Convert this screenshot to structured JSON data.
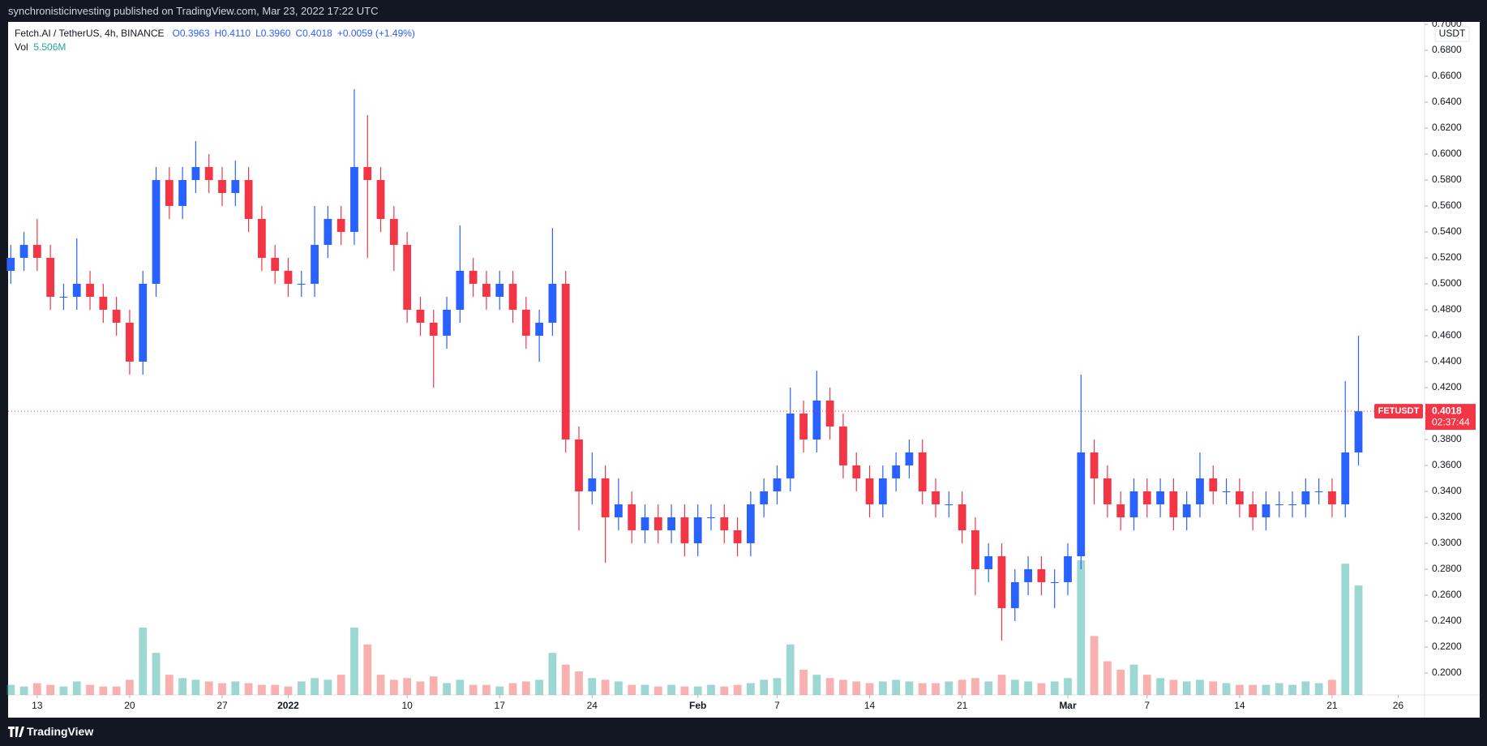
{
  "header": {
    "text": "synchronisticinvesting published on TradingView.com, Mar 23, 2022 17:22 UTC"
  },
  "legend": {
    "symbol": "Fetch.AI / TetherUS, 4h, BINANCE",
    "ohlc": [
      "O0.3963",
      "H0.4110",
      "L0.3960",
      "C0.4018"
    ],
    "change": "+0.0059 (+1.49%)",
    "volume_label": "Vol",
    "volume_value": "5.506M"
  },
  "footer": {
    "brand": "TradingView"
  },
  "chart_data": {
    "type": "candlestick",
    "currency": "USDT",
    "x": [
      -2,
      -1,
      0,
      1,
      2,
      3,
      4,
      5,
      6,
      7,
      8,
      9,
      10,
      11,
      12,
      13,
      14,
      15,
      16,
      17,
      18,
      19,
      20,
      21,
      22,
      23,
      24,
      25,
      26,
      27,
      28,
      29,
      30,
      31,
      32,
      33,
      34,
      35,
      36,
      37,
      38,
      39,
      40,
      41,
      42,
      43,
      44,
      45,
      46,
      47,
      48,
      49,
      50,
      51,
      52,
      53,
      54,
      55,
      56,
      57,
      58,
      59,
      60,
      61,
      62,
      63,
      64,
      65,
      66,
      67,
      68,
      69,
      70,
      71,
      72,
      73,
      74,
      75,
      76,
      77,
      78,
      79,
      80,
      81,
      82,
      83,
      84,
      85,
      86,
      87,
      88,
      89,
      90,
      91,
      92,
      93,
      94,
      95,
      96,
      97,
      98,
      99,
      100
    ],
    "open": [
      0.51,
      0.52,
      0.53,
      0.52,
      0.49,
      0.49,
      0.5,
      0.49,
      0.48,
      0.47,
      0.44,
      0.5,
      0.58,
      0.56,
      0.58,
      0.59,
      0.58,
      0.57,
      0.58,
      0.55,
      0.52,
      0.51,
      0.5,
      0.5,
      0.53,
      0.55,
      0.54,
      0.59,
      0.58,
      0.55,
      0.53,
      0.48,
      0.47,
      0.46,
      0.48,
      0.51,
      0.5,
      0.49,
      0.5,
      0.48,
      0.46,
      0.47,
      0.5,
      0.38,
      0.34,
      0.35,
      0.32,
      0.33,
      0.31,
      0.32,
      0.31,
      0.32,
      0.3,
      0.32,
      0.32,
      0.31,
      0.3,
      0.33,
      0.34,
      0.35,
      0.4,
      0.38,
      0.41,
      0.39,
      0.36,
      0.35,
      0.33,
      0.35,
      0.36,
      0.37,
      0.34,
      0.33,
      0.33,
      0.31,
      0.28,
      0.29,
      0.25,
      0.27,
      0.28,
      0.27,
      0.27,
      0.29,
      0.37,
      0.35,
      0.33,
      0.32,
      0.34,
      0.33,
      0.34,
      0.32,
      0.33,
      0.35,
      0.34,
      0.34,
      0.33,
      0.32,
      0.33,
      0.33,
      0.33,
      0.34,
      0.34,
      0.33,
      0.37
    ],
    "high": [
      0.53,
      0.54,
      0.55,
      0.53,
      0.5,
      0.535,
      0.51,
      0.5,
      0.49,
      0.48,
      0.51,
      0.59,
      0.59,
      0.59,
      0.61,
      0.6,
      0.59,
      0.595,
      0.59,
      0.56,
      0.53,
      0.52,
      0.51,
      0.56,
      0.56,
      0.56,
      0.65,
      0.63,
      0.59,
      0.56,
      0.54,
      0.49,
      0.48,
      0.49,
      0.545,
      0.52,
      0.51,
      0.51,
      0.51,
      0.49,
      0.48,
      0.543,
      0.51,
      0.39,
      0.37,
      0.36,
      0.35,
      0.34,
      0.33,
      0.33,
      0.33,
      0.33,
      0.33,
      0.33,
      0.33,
      0.32,
      0.34,
      0.35,
      0.36,
      0.42,
      0.41,
      0.433,
      0.42,
      0.4,
      0.37,
      0.36,
      0.36,
      0.37,
      0.38,
      0.38,
      0.35,
      0.34,
      0.34,
      0.32,
      0.3,
      0.3,
      0.28,
      0.29,
      0.29,
      0.28,
      0.3,
      0.43,
      0.38,
      0.36,
      0.34,
      0.35,
      0.35,
      0.35,
      0.35,
      0.34,
      0.37,
      0.36,
      0.35,
      0.35,
      0.34,
      0.34,
      0.34,
      0.34,
      0.35,
      0.35,
      0.35,
      0.425,
      0.46
    ],
    "low": [
      0.5,
      0.51,
      0.51,
      0.48,
      0.48,
      0.48,
      0.48,
      0.47,
      0.46,
      0.43,
      0.43,
      0.49,
      0.55,
      0.55,
      0.57,
      0.57,
      0.56,
      0.56,
      0.54,
      0.51,
      0.5,
      0.49,
      0.49,
      0.49,
      0.52,
      0.53,
      0.53,
      0.52,
      0.54,
      0.51,
      0.47,
      0.46,
      0.42,
      0.45,
      0.47,
      0.49,
      0.48,
      0.48,
      0.47,
      0.45,
      0.44,
      0.46,
      0.37,
      0.31,
      0.33,
      0.285,
      0.31,
      0.3,
      0.3,
      0.3,
      0.3,
      0.29,
      0.29,
      0.31,
      0.3,
      0.29,
      0.29,
      0.32,
      0.33,
      0.34,
      0.37,
      0.37,
      0.38,
      0.35,
      0.34,
      0.32,
      0.32,
      0.34,
      0.35,
      0.33,
      0.32,
      0.32,
      0.3,
      0.26,
      0.27,
      0.225,
      0.24,
      0.26,
      0.26,
      0.25,
      0.26,
      0.28,
      0.33,
      0.32,
      0.31,
      0.31,
      0.32,
      0.32,
      0.31,
      0.31,
      0.32,
      0.33,
      0.33,
      0.32,
      0.31,
      0.31,
      0.32,
      0.32,
      0.32,
      0.33,
      0.32,
      0.32,
      0.36
    ],
    "close": [
      0.52,
      0.53,
      0.52,
      0.49,
      0.49,
      0.5,
      0.49,
      0.48,
      0.47,
      0.44,
      0.5,
      0.58,
      0.56,
      0.58,
      0.59,
      0.58,
      0.57,
      0.58,
      0.55,
      0.52,
      0.51,
      0.5,
      0.5,
      0.53,
      0.55,
      0.54,
      0.59,
      0.58,
      0.55,
      0.53,
      0.48,
      0.47,
      0.46,
      0.48,
      0.51,
      0.5,
      0.49,
      0.5,
      0.48,
      0.46,
      0.47,
      0.5,
      0.38,
      0.34,
      0.35,
      0.32,
      0.33,
      0.31,
      0.32,
      0.31,
      0.32,
      0.3,
      0.32,
      0.32,
      0.31,
      0.3,
      0.33,
      0.34,
      0.35,
      0.4,
      0.38,
      0.41,
      0.39,
      0.36,
      0.35,
      0.33,
      0.35,
      0.36,
      0.37,
      0.34,
      0.33,
      0.33,
      0.31,
      0.28,
      0.29,
      0.25,
      0.27,
      0.28,
      0.27,
      0.27,
      0.29,
      0.37,
      0.35,
      0.33,
      0.32,
      0.34,
      0.33,
      0.34,
      0.32,
      0.33,
      0.35,
      0.34,
      0.34,
      0.33,
      0.32,
      0.33,
      0.33,
      0.33,
      0.34,
      0.34,
      0.33,
      0.37,
      0.4018
    ],
    "volume": [
      6,
      5,
      7,
      6,
      5,
      8,
      6,
      5,
      5,
      9,
      40,
      25,
      12,
      10,
      9,
      8,
      7,
      8,
      7,
      6,
      6,
      5,
      8,
      10,
      9,
      12,
      40,
      30,
      12,
      9,
      10,
      8,
      11,
      7,
      9,
      6,
      6,
      5,
      7,
      8,
      9,
      25,
      18,
      14,
      10,
      9,
      8,
      6,
      6,
      5,
      6,
      5,
      5,
      6,
      5,
      6,
      7,
      9,
      10,
      30,
      15,
      12,
      10,
      9,
      8,
      7,
      8,
      9,
      8,
      7,
      7,
      8,
      9,
      10,
      8,
      12,
      9,
      8,
      7,
      8,
      10,
      80,
      35,
      20,
      15,
      18,
      12,
      10,
      9,
      8,
      9,
      8,
      7,
      6,
      6,
      6,
      7,
      6,
      8,
      7,
      9,
      78,
      65
    ],
    "volume_lim": [
      0,
      100
    ],
    "xlim": [
      -2.2,
      105
    ],
    "xticks": [
      {
        "value": 0,
        "label": "13"
      },
      {
        "value": 7,
        "label": "20"
      },
      {
        "value": 14,
        "label": "27"
      },
      {
        "value": 19,
        "label": "2022"
      },
      {
        "value": 28,
        "label": "10"
      },
      {
        "value": 35,
        "label": "17"
      },
      {
        "value": 42,
        "label": "24"
      },
      {
        "value": 50,
        "label": "Feb"
      },
      {
        "value": 56,
        "label": "7"
      },
      {
        "value": 63,
        "label": "14"
      },
      {
        "value": 70,
        "label": "21"
      },
      {
        "value": 78,
        "label": "Mar"
      },
      {
        "value": 84,
        "label": "7"
      },
      {
        "value": 91,
        "label": "14"
      },
      {
        "value": 98,
        "label": "21"
      },
      {
        "value": 103,
        "label": "26"
      }
    ],
    "ylim": [
      0.1831,
      0.7019
    ],
    "yticks": [
      {
        "value": 0.2,
        "label": "0.2000"
      },
      {
        "value": 0.22,
        "label": "0.2200"
      },
      {
        "value": 0.24,
        "label": "0.2400"
      },
      {
        "value": 0.26,
        "label": "0.2600"
      },
      {
        "value": 0.28,
        "label": "0.2800"
      },
      {
        "value": 0.3,
        "label": "0.3000"
      },
      {
        "value": 0.32,
        "label": "0.3200"
      },
      {
        "value": 0.34,
        "label": "0.3400"
      },
      {
        "value": 0.36,
        "label": "0.3600"
      },
      {
        "value": 0.38,
        "label": "0.3800"
      },
      {
        "value": 0.4,
        "label": "0.4000"
      },
      {
        "value": 0.42,
        "label": "0.4200"
      },
      {
        "value": 0.44,
        "label": "0.4400"
      },
      {
        "value": 0.46,
        "label": "0.4600"
      },
      {
        "value": 0.48,
        "label": "0.4800"
      },
      {
        "value": 0.5,
        "label": "0.5000"
      },
      {
        "value": 0.52,
        "label": "0.5200"
      },
      {
        "value": 0.54,
        "label": "0.5400"
      },
      {
        "value": 0.56,
        "label": "0.5600"
      },
      {
        "value": 0.58,
        "label": "0.5800"
      },
      {
        "value": 0.6,
        "label": "0.6000"
      },
      {
        "value": 0.62,
        "label": "0.6200"
      },
      {
        "value": 0.64,
        "label": "0.6400"
      },
      {
        "value": 0.66,
        "label": "0.6600"
      },
      {
        "value": 0.68,
        "label": "0.6800"
      },
      {
        "value": 0.7,
        "label": "0.7000"
      }
    ],
    "up_color": "#2962ff",
    "down_color": "#f23645",
    "volume_up_color": "#26a69a",
    "volume_down_color": "#ef5350",
    "last_price": {
      "label": "FETUSDT",
      "value": 0.4018,
      "countdown": "02:37:44",
      "color": "#f23645"
    }
  }
}
